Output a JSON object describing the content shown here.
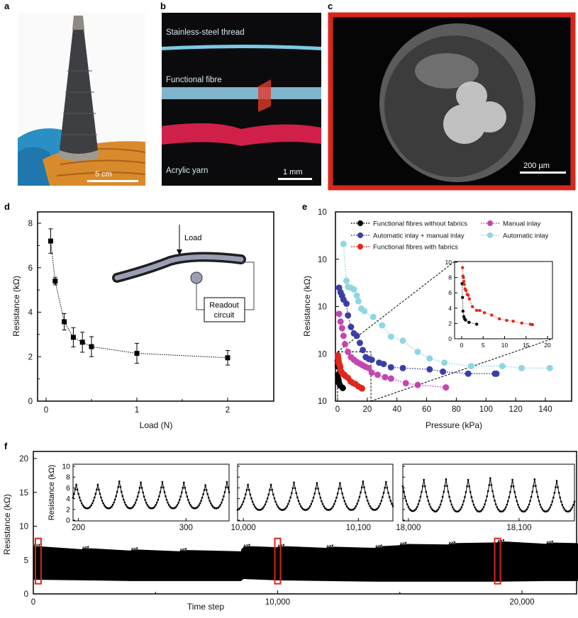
{
  "panels": {
    "a": {
      "label": "a",
      "scale": "5 cm"
    },
    "b": {
      "label": "b",
      "thread1": "Stainless-steel thread",
      "thread2": "Functional fibre",
      "thread3": "Acrylic yarn",
      "scale": "1 mm"
    },
    "c": {
      "label": "c",
      "scale": "200 µm"
    },
    "d": {
      "label": "d",
      "load": "Load",
      "readout1": "Readout",
      "readout2": "circuit"
    },
    "e": {
      "label": "e"
    },
    "f": {
      "label": "f"
    }
  },
  "colors": {
    "red": "#d9261c",
    "black": "#000000",
    "blue": "#3a3fa8",
    "magenta": "#c446b0",
    "cyan": "#8fd6e3",
    "fred": "#e0271d"
  },
  "chart_data": [
    {
      "id": "d",
      "type": "scatter",
      "xlabel": "Load (N)",
      "ylabel": "Resistance (kΩ)",
      "xlim": [
        -0.08,
        2.5
      ],
      "ylim": [
        0,
        8.5
      ],
      "xticks": [
        0,
        1,
        2
      ],
      "xtick_labels": [
        "0",
        "1",
        "2"
      ],
      "yticks": [
        0,
        2,
        4,
        6,
        8
      ],
      "ytick_labels": [
        "0",
        "2",
        "4",
        "6",
        "8"
      ],
      "x": [
        0.05,
        0.1,
        0.2,
        0.3,
        0.4,
        0.5,
        1,
        2
      ],
      "y": [
        7.2,
        5.4,
        3.57,
        2.87,
        2.65,
        2.45,
        2.15,
        1.95
      ],
      "err": [
        0.55,
        0.17,
        0.37,
        0.43,
        0.45,
        0.45,
        0.45,
        0.33
      ]
    },
    {
      "id": "e",
      "type": "line",
      "yscale": "log",
      "xlabel": "Pressure (kPa)",
      "ylabel": "Resistance (kΩ)",
      "xlim": [
        -2,
        157
      ],
      "ylim": [
        1,
        10000
      ],
      "xticks": [
        0,
        20,
        40,
        60,
        80,
        100,
        120,
        140
      ],
      "xtick_labels": [
        "0",
        "20",
        "40",
        "60",
        "80",
        "100",
        "120",
        "140"
      ],
      "ytick_labels": [
        "10",
        "10",
        "10",
        "10",
        "10"
      ],
      "ytick_exps": [
        "0",
        "1",
        "2",
        "3",
        "4"
      ],
      "legend": "top",
      "series": [
        {
          "name": "Functional fibres without fabrics",
          "color": "#000000",
          "x": [
            0.1,
            0.2,
            0.3,
            0.5,
            0.7,
            0.9,
            1.7,
            3.5
          ],
          "y": [
            7.2,
            5.4,
            3.6,
            2.9,
            2.6,
            2.45,
            2.15,
            1.9
          ]
        },
        {
          "name": "Automatic inlay + manual inlay",
          "color": "#3a3fa8",
          "x": [
            1,
            2,
            3,
            4,
            6,
            7,
            9,
            11,
            13,
            15,
            17,
            19,
            21,
            23,
            28,
            31,
            36,
            44,
            62,
            71,
            88,
            106,
            107
          ],
          "y": [
            250,
            200,
            170,
            140,
            115,
            65,
            37,
            27,
            24,
            17,
            12,
            8.5,
            7.8,
            7.5,
            6.5,
            6.1,
            5.2,
            5,
            4.7,
            4.2,
            3.8,
            3.8,
            3.8
          ]
        },
        {
          "name": "Functional fibres with fabrics",
          "color": "#e0271d",
          "x": [
            0.2,
            0.3,
            0.4,
            0.5,
            0.6,
            0.8,
            1,
            1.3,
            1.5,
            1.8,
            2.5,
            3.5,
            4.2,
            5.3,
            7,
            8.8,
            10.5,
            12,
            14,
            16,
            16.5
          ],
          "y": [
            9.3,
            8.2,
            8,
            7.5,
            7.1,
            6.5,
            6.3,
            5.8,
            5.7,
            5.2,
            4.2,
            3.7,
            3.7,
            3.4,
            3.1,
            2.6,
            2.4,
            2.3,
            2.05,
            1.9,
            1.85
          ]
        },
        {
          "name": "Manual inlay",
          "color": "#c446b0",
          "x": [
            1,
            2,
            3,
            4,
            5,
            7,
            9,
            11,
            13,
            15,
            17,
            19,
            21,
            23,
            27,
            32,
            36,
            46,
            54,
            73
          ],
          "y": [
            70,
            48,
            35,
            24,
            16,
            11,
            8.5,
            7.5,
            6.7,
            6.2,
            5.7,
            5.3,
            5,
            4,
            3.6,
            3.2,
            3,
            2.4,
            2.2,
            1.95
          ]
        },
        {
          "name": "Automatic inlay",
          "color": "#8fd6e3",
          "x": [
            4,
            6,
            7,
            9,
            11,
            13,
            14,
            16,
            18,
            24,
            30,
            36,
            44,
            54,
            62,
            72,
            90,
            111,
            124,
            143
          ],
          "y": [
            2100,
            350,
            260,
            250,
            230,
            170,
            130,
            90,
            80,
            60,
            40,
            23,
            19,
            11,
            8,
            6.5,
            5.5,
            5.5,
            5,
            5
          ]
        }
      ],
      "inset": {
        "xlim": [
          -0.5,
          21
        ],
        "ylim": [
          0,
          10
        ],
        "xticks": [
          0,
          5,
          10,
          15,
          20
        ],
        "xtick_labels": [
          "0",
          "5",
          "10",
          "15",
          "20"
        ],
        "yticks": [
          0,
          2,
          4,
          6,
          8,
          10
        ],
        "ytick_labels": [
          "0",
          "2",
          "4",
          "6",
          "8",
          "10"
        ],
        "series_shown": [
          0,
          2
        ]
      }
    },
    {
      "id": "f",
      "type": "line",
      "xlabel": "Time step",
      "ylabel": "Resistance (kΩ)",
      "xlim": [
        0,
        22300
      ],
      "ylim": [
        0,
        20
      ],
      "xticks": [
        0,
        10000,
        20000
      ],
      "xtick_labels": [
        "0",
        "10,000",
        "20,000"
      ],
      "yticks": [
        0,
        5,
        10,
        15,
        20
      ],
      "ytick_labels": [
        "0",
        "5",
        "10",
        "15",
        "20"
      ],
      "envelope_x": [
        0,
        2000,
        4000,
        6000,
        8500,
        8600,
        10000,
        12000,
        14000,
        15000,
        17000,
        19000,
        21000,
        22300
      ],
      "envelope_upper": [
        7.1,
        6.8,
        6.6,
        6.5,
        6.5,
        7.1,
        7.1,
        7.0,
        7.0,
        7.4,
        7.5,
        7.8,
        7.6,
        7.5
      ],
      "envelope_lower": [
        2.1,
        2.0,
        1.9,
        1.9,
        1.9,
        2.2,
        2.0,
        1.9,
        1.8,
        1.8,
        1.8,
        1.8,
        1.9,
        1.9
      ],
      "highlights": [
        200,
        10000,
        19000
      ],
      "insets": [
        {
          "xlim": [
            195,
            340
          ],
          "xticks": [
            200,
            300
          ],
          "xtick_labels": [
            "200",
            "300"
          ],
          "start_phase": 2,
          "period": 20,
          "first_peak": 218,
          "peaks": [
            6.6,
            7.2,
            7.0,
            7.1,
            7.0,
            6.5,
            7.1
          ],
          "troughs": [
            2.2,
            2.2,
            2.2,
            2.2,
            2.2,
            2.2,
            2.2
          ]
        },
        {
          "xlim": [
            9995,
            10130
          ],
          "xticks": [
            10000,
            10100
          ],
          "xtick_labels": [
            "10,000",
            "10,100"
          ],
          "period": 20,
          "first_peak": 10024,
          "peaks": [
            6.6,
            7.0,
            6.9,
            6.9,
            7.2,
            7.1,
            6.9
          ],
          "troughs": [
            1.9,
            1.9,
            1.9,
            1.9,
            1.9,
            1.9,
            1.9
          ]
        },
        {
          "xlim": [
            17995,
            18150
          ],
          "xticks": [
            18000,
            18100
          ],
          "xtick_labels": [
            "18,000",
            "18,100"
          ],
          "period": 20,
          "first_peak": 18014,
          "peaks": [
            7.5,
            7.6,
            7.5,
            7.8,
            7.5,
            7.6,
            7.3
          ],
          "troughs": [
            1.7,
            1.6,
            1.6,
            1.6,
            1.6,
            1.6,
            1.6
          ]
        }
      ],
      "inset_ylim": [
        0,
        10
      ],
      "inset_yticks": [
        0,
        2,
        4,
        6,
        8,
        10
      ],
      "inset_ytick_labels": [
        "0",
        "2",
        "4",
        "6",
        "8",
        "10"
      ],
      "inset_ylabel": "Resistance (kΩ)"
    }
  ]
}
